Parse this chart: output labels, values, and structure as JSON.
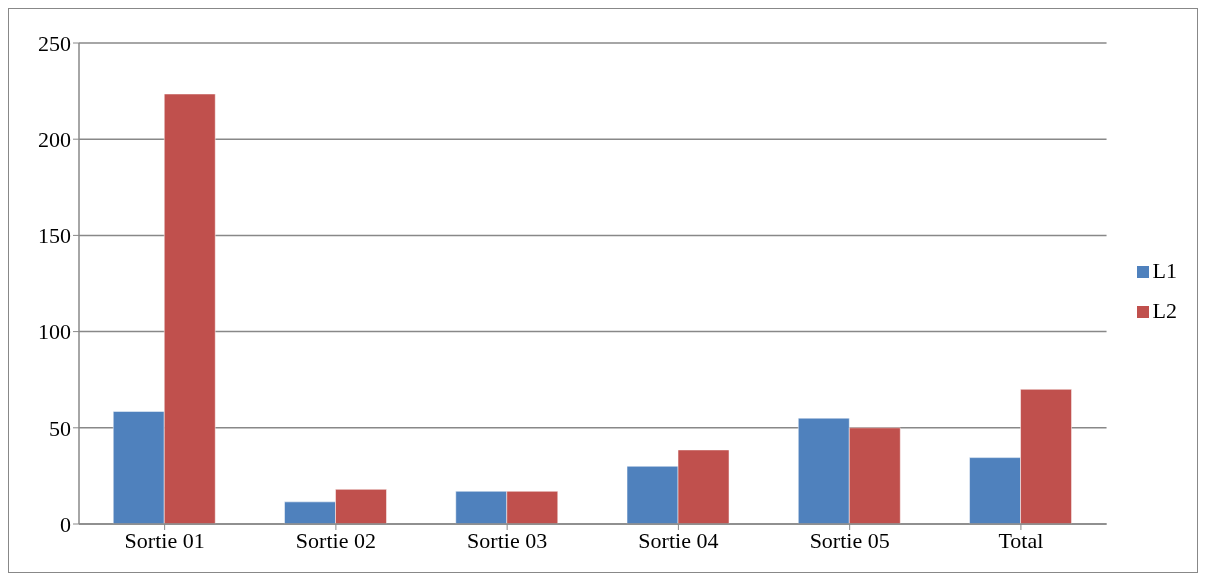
{
  "chart_data": {
    "type": "bar",
    "categories": [
      "Sortie 01",
      "Sortie 02",
      "Sortie 03",
      "Sortie 04",
      "Sortie 05",
      "Total"
    ],
    "series": [
      {
        "name": "L1",
        "color": "#4f81bd",
        "values": [
          58.5,
          11.5,
          17,
          30,
          55,
          34.5
        ]
      },
      {
        "name": "L2",
        "color": "#c0504d",
        "values": [
          223.5,
          18,
          17,
          38.5,
          50,
          70
        ]
      }
    ],
    "ylim": [
      0,
      250
    ],
    "yticks": [
      0,
      50,
      100,
      150,
      200,
      250
    ],
    "grid": "y",
    "legend": "right"
  }
}
